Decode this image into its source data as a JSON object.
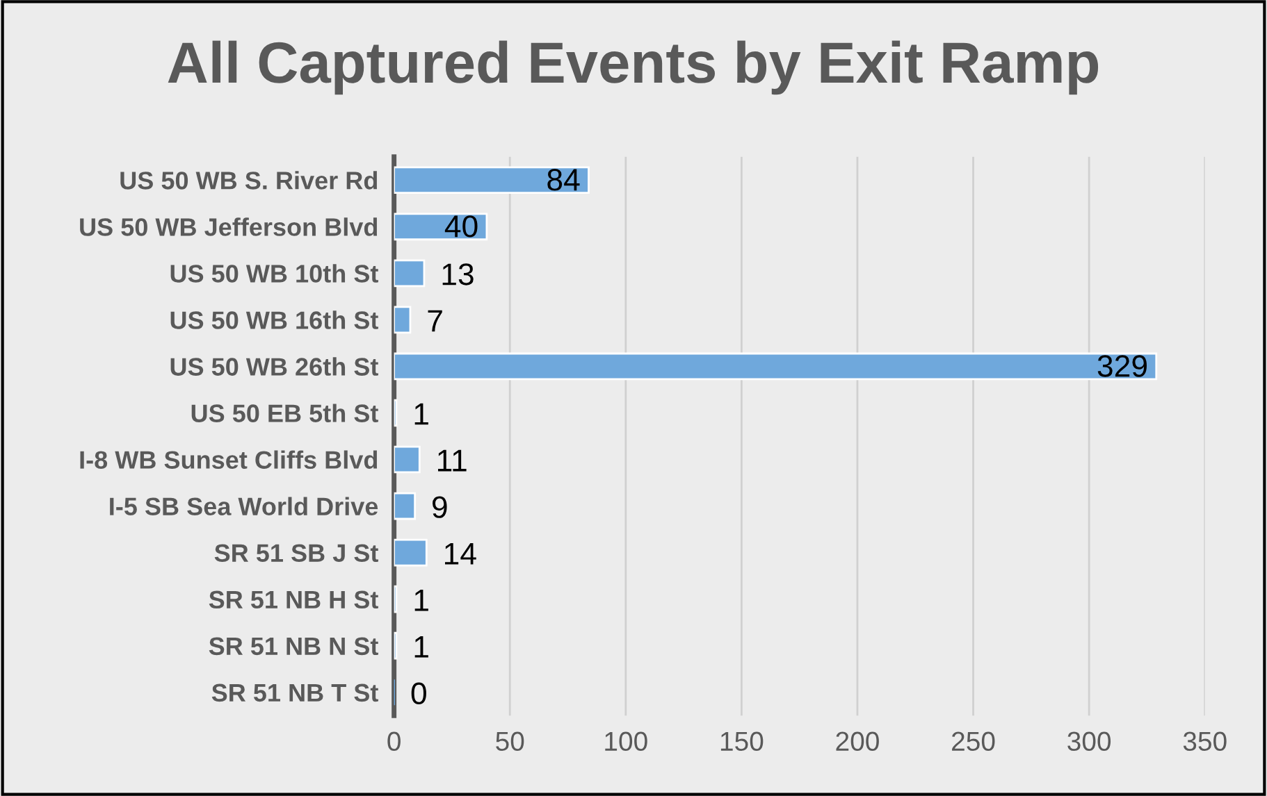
{
  "chart_data": {
    "type": "bar",
    "orientation": "horizontal",
    "title": "All Captured Events by Exit Ramp",
    "categories": [
      "US 50 WB S. River Rd",
      "US 50 WB Jefferson Blvd",
      "US 50 WB 10th St",
      "US 50 WB 16th St",
      "US 50 WB 26th St",
      "US 50 EB 5th St",
      "I-8 WB Sunset Cliffs Blvd",
      "I-5 SB Sea World Drive",
      "SR 51 SB J St",
      "SR 51 NB H St",
      "SR 51 NB N St",
      "SR 51 NB T St"
    ],
    "values": [
      84,
      40,
      13,
      7,
      329,
      1,
      11,
      9,
      14,
      1,
      1,
      0
    ],
    "color": "#6fa8dc",
    "xlim": [
      0,
      350
    ],
    "xticks": [
      0,
      50,
      100,
      150,
      200,
      250,
      300,
      350
    ],
    "grid": "x",
    "data_labels": true,
    "legend": false
  }
}
